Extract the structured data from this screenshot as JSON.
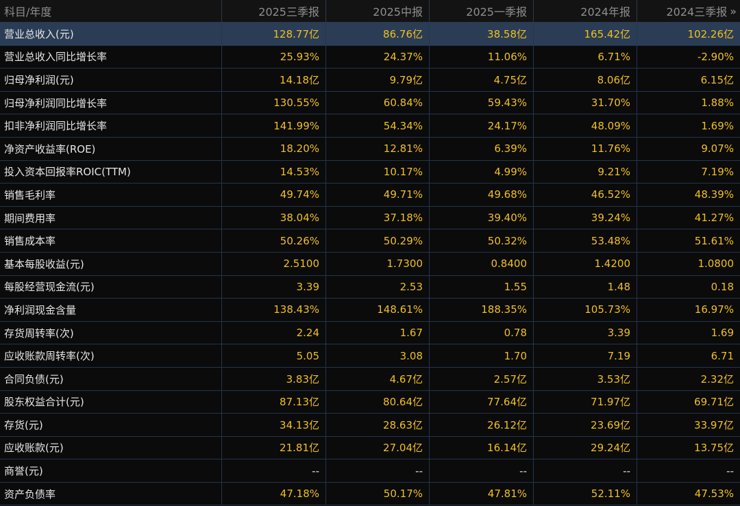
{
  "header": {
    "label": "科目/年度",
    "periods": [
      "2025三季报",
      "2025中报",
      "2025一季报",
      "2024年报",
      "2024三季报"
    ],
    "more_icon": "»"
  },
  "rows": [
    {
      "label": "营业总收入(元)",
      "values": [
        "128.77亿",
        "86.76亿",
        "38.58亿",
        "165.42亿",
        "102.26亿"
      ],
      "highlight": true
    },
    {
      "label": "营业总收入同比增长率",
      "values": [
        "25.93%",
        "24.37%",
        "11.06%",
        "6.71%",
        "-2.90%"
      ]
    },
    {
      "label": "归母净利润(元)",
      "values": [
        "14.18亿",
        "9.79亿",
        "4.75亿",
        "8.06亿",
        "6.15亿"
      ]
    },
    {
      "label": "归母净利润同比增长率",
      "values": [
        "130.55%",
        "60.84%",
        "59.43%",
        "31.70%",
        "1.88%"
      ]
    },
    {
      "label": "扣非净利润同比增长率",
      "values": [
        "141.99%",
        "54.34%",
        "24.17%",
        "48.09%",
        "1.69%"
      ]
    },
    {
      "label": "净资产收益率(ROE)",
      "values": [
        "18.20%",
        "12.81%",
        "6.39%",
        "11.76%",
        "9.07%"
      ]
    },
    {
      "label": "投入资本回报率ROIC(TTM)",
      "values": [
        "14.53%",
        "10.17%",
        "4.99%",
        "9.21%",
        "7.19%"
      ]
    },
    {
      "label": "销售毛利率",
      "values": [
        "49.74%",
        "49.71%",
        "49.68%",
        "46.52%",
        "48.39%"
      ]
    },
    {
      "label": "期间费用率",
      "values": [
        "38.04%",
        "37.18%",
        "39.40%",
        "39.24%",
        "41.27%"
      ]
    },
    {
      "label": "销售成本率",
      "values": [
        "50.26%",
        "50.29%",
        "50.32%",
        "53.48%",
        "51.61%"
      ]
    },
    {
      "label": "基本每股收益(元)",
      "values": [
        "2.5100",
        "1.7300",
        "0.8400",
        "1.4200",
        "1.0800"
      ]
    },
    {
      "label": "每股经营现金流(元)",
      "values": [
        "3.39",
        "2.53",
        "1.55",
        "1.48",
        "0.18"
      ]
    },
    {
      "label": "净利润现金含量",
      "values": [
        "138.43%",
        "148.61%",
        "188.35%",
        "105.73%",
        "16.97%"
      ]
    },
    {
      "label": "存货周转率(次)",
      "values": [
        "2.24",
        "1.67",
        "0.78",
        "3.39",
        "1.69"
      ]
    },
    {
      "label": "应收账款周转率(次)",
      "values": [
        "5.05",
        "3.08",
        "1.70",
        "7.19",
        "6.71"
      ]
    },
    {
      "label": "合同负债(元)",
      "values": [
        "3.83亿",
        "4.67亿",
        "2.57亿",
        "3.53亿",
        "2.32亿"
      ]
    },
    {
      "label": "股东权益合计(元)",
      "values": [
        "87.13亿",
        "80.64亿",
        "77.64亿",
        "71.97亿",
        "69.71亿"
      ]
    },
    {
      "label": "存货(元)",
      "values": [
        "34.13亿",
        "28.63亿",
        "26.12亿",
        "23.69亿",
        "33.97亿"
      ]
    },
    {
      "label": "应收账款(元)",
      "values": [
        "21.81亿",
        "27.04亿",
        "16.14亿",
        "29.24亿",
        "13.75亿"
      ]
    },
    {
      "label": "商誉(元)",
      "values": [
        "--",
        "--",
        "--",
        "--",
        "--"
      ],
      "neutral": true
    },
    {
      "label": "资产负债率",
      "values": [
        "47.18%",
        "50.17%",
        "47.81%",
        "52.11%",
        "47.53%"
      ]
    }
  ],
  "colors": {
    "background": "#0b0b0b",
    "header_background": "#131313",
    "highlight_row": "#2b3d55",
    "grid_line": "#23364d",
    "value_text": "#f0c020",
    "label_text": "#e6e6e6",
    "header_text": "#8e8e8e"
  }
}
